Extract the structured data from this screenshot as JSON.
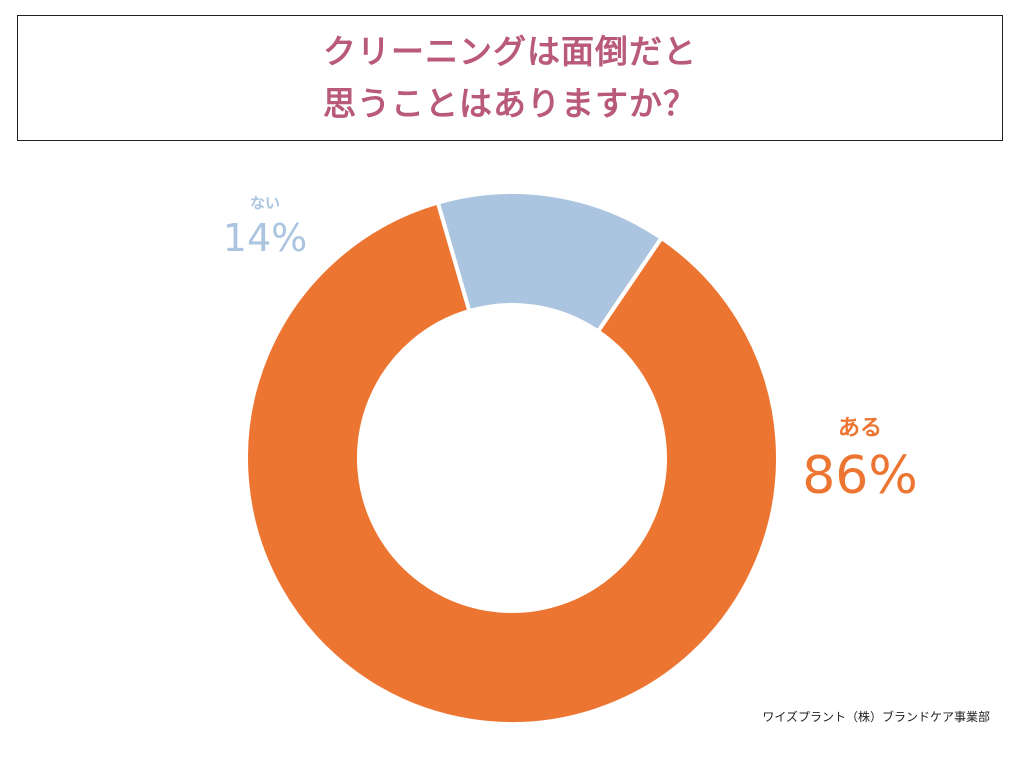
{
  "title": {
    "line1": "クリーニングは面倒だと",
    "line2": "思うことはありますか？"
  },
  "chart_data": {
    "type": "pie",
    "donut": true,
    "slices": [
      {
        "label": "ある",
        "value": 86,
        "value_label": "86%",
        "color": "#ed7532"
      },
      {
        "label": "ない",
        "value": 14,
        "value_label": "14%",
        "color": "#abc5e0"
      }
    ]
  },
  "footer": {
    "credit": "ワイズプラント（株）ブランドケア事業部"
  }
}
